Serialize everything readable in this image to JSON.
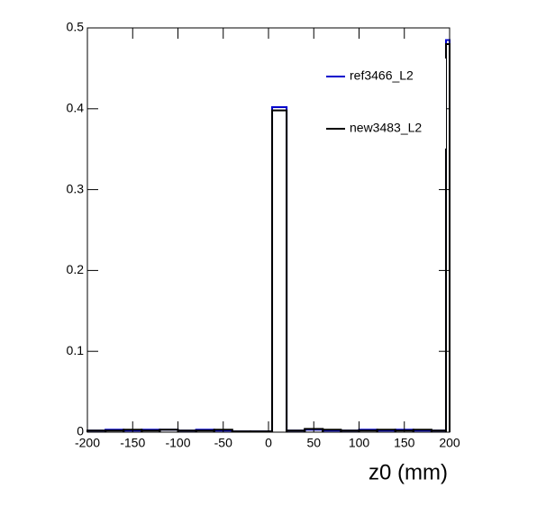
{
  "chart_data": {
    "type": "histogram",
    "x_label": "z0 (mm)",
    "bins": [
      -200,
      -180,
      -160,
      -140,
      -120,
      -100,
      -80,
      -60,
      -40,
      -20,
      0,
      4,
      20,
      40,
      60,
      80,
      100,
      120,
      140,
      160,
      180,
      196,
      200
    ],
    "series": [
      {
        "name": "ref3466_L2",
        "color": "#0000cc",
        "values": [
          0.002,
          0.003,
          0.002,
          0.003,
          0.003,
          0.002,
          0.003,
          0.002,
          0.001,
          0.001,
          0.001,
          0.402,
          0.002,
          0.003,
          0.002,
          0.002,
          0.003,
          0.002,
          0.003,
          0.002,
          0.002,
          0.485
        ]
      },
      {
        "name": "new3483_L2",
        "color": "#000000",
        "values": [
          0.002,
          0.002,
          0.003,
          0.002,
          0.003,
          0.002,
          0.002,
          0.003,
          0.001,
          0.001,
          0.001,
          0.398,
          0.002,
          0.004,
          0.003,
          0.002,
          0.002,
          0.003,
          0.002,
          0.003,
          0.002,
          0.48
        ]
      }
    ],
    "xlim": [
      -200,
      200
    ],
    "xticks": [
      -200,
      -150,
      -100,
      -50,
      0,
      50,
      100,
      150,
      200
    ],
    "ylim": [
      0,
      0.5
    ],
    "yticks": [
      0,
      0.1,
      0.2,
      0.3,
      0.4,
      0.5
    ],
    "legend": "upper right"
  }
}
